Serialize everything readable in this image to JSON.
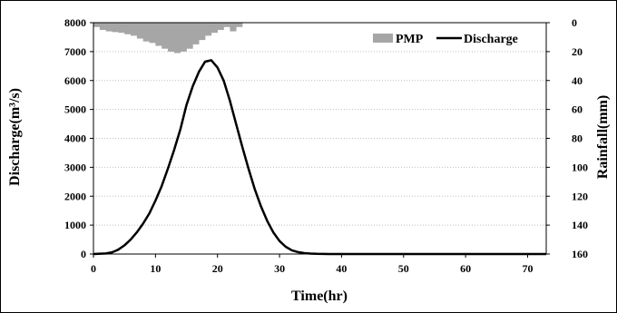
{
  "chart_data": {
    "type": "line",
    "title": "",
    "xlabel": "Time(hr)",
    "ylabel_left": "Discharge(m³/s)",
    "ylabel_right": "Rainfall(mm)",
    "xlim": [
      0,
      73
    ],
    "ylim_left": [
      0,
      8000
    ],
    "ylim_right": [
      0,
      160
    ],
    "right_axis_inverted": true,
    "xticks": [
      0,
      10,
      20,
      30,
      40,
      50,
      60,
      70
    ],
    "yticks_left": [
      0,
      1000,
      2000,
      3000,
      4000,
      5000,
      6000,
      7000,
      8000
    ],
    "yticks_right": [
      0,
      20,
      40,
      60,
      80,
      100,
      120,
      140,
      160
    ],
    "grid": "horizontal dotted",
    "legend_position": "top-right",
    "legend": [
      "PMP",
      "Discharge"
    ],
    "series": [
      {
        "name": "PMP",
        "type": "bar",
        "axis": "right",
        "color": "#a6a6a6",
        "x": [
          1,
          2,
          3,
          4,
          5,
          6,
          7,
          8,
          9,
          10,
          11,
          12,
          13,
          14,
          15,
          16,
          17,
          18,
          19,
          20,
          21,
          22,
          23,
          24
        ],
        "values": [
          3,
          5,
          6,
          6.5,
          7,
          8,
          9,
          11,
          13,
          14,
          16,
          18,
          20,
          21,
          20,
          18,
          15,
          12,
          9,
          7,
          5,
          3,
          6,
          3
        ]
      },
      {
        "name": "Discharge",
        "type": "line",
        "axis": "left",
        "color": "#000000",
        "x": [
          0,
          2,
          3,
          4,
          5,
          6,
          7,
          8,
          9,
          10,
          11,
          12,
          13,
          14,
          15,
          16,
          17,
          18,
          19,
          20,
          21,
          22,
          23,
          24,
          25,
          26,
          27,
          28,
          29,
          30,
          31,
          32,
          33,
          34,
          35,
          36,
          38,
          40,
          73
        ],
        "values": [
          0,
          20,
          60,
          150,
          300,
          500,
          750,
          1050,
          1400,
          1850,
          2350,
          2950,
          3600,
          4300,
          5150,
          5800,
          6300,
          6650,
          6700,
          6450,
          6000,
          5300,
          4500,
          3700,
          2950,
          2250,
          1650,
          1150,
          750,
          450,
          250,
          130,
          65,
          30,
          15,
          5,
          0,
          0,
          0
        ]
      }
    ]
  }
}
